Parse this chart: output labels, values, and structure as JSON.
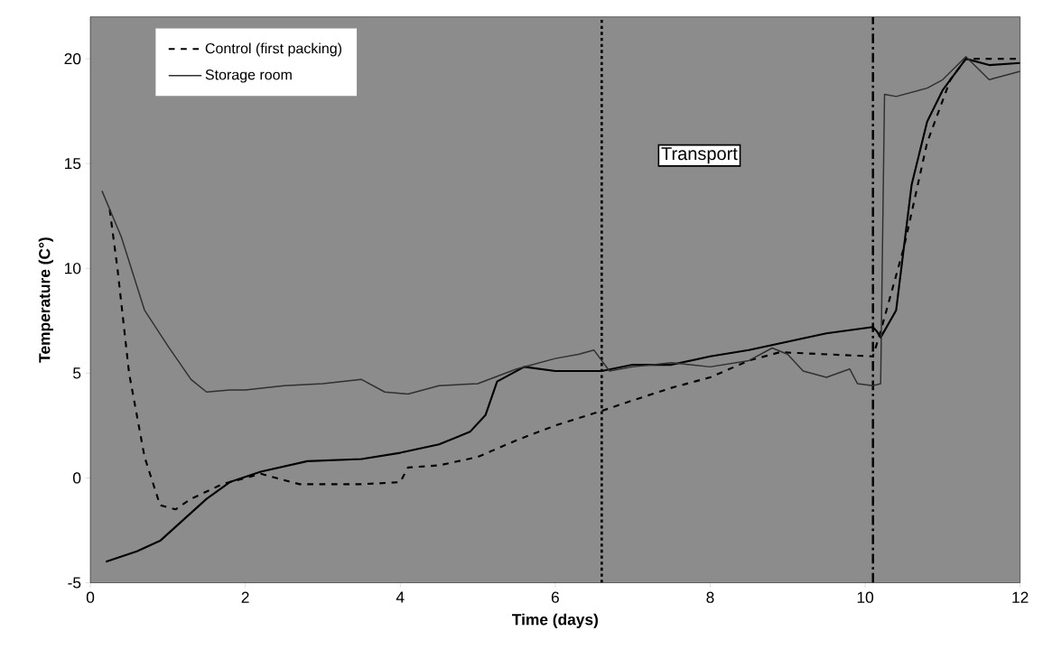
{
  "chart_data": {
    "type": "line",
    "xlabel": "Time (days)",
    "ylabel": "Temperature (C°)",
    "xlim": [
      0,
      12
    ],
    "ylim": [
      -5,
      22
    ],
    "xticks": [
      0,
      2,
      4,
      6,
      8,
      10,
      12
    ],
    "yticks": [
      -5,
      0,
      5,
      10,
      15,
      20
    ],
    "legend": "top left",
    "grid": false,
    "marker": "none",
    "series": [
      {
        "color": "#000000",
        "line_style": "solid",
        "x": [
          0.2,
          0.6,
          0.9,
          1.2,
          1.5,
          1.8,
          2.2,
          2.8,
          3.5,
          4,
          4.5,
          4.9,
          5.1,
          5.25,
          5.6,
          6,
          6.6,
          7,
          7.5,
          8,
          8.5,
          9,
          9.5,
          10.1,
          10.15,
          10.2,
          10.4,
          10.6,
          10.8,
          11,
          11.3,
          11.6,
          12
        ],
        "values": [
          -4,
          -3.5,
          -3,
          -2,
          -1,
          -0.2,
          0.3,
          0.8,
          0.9,
          1.2,
          1.6,
          2.2,
          3,
          4.6,
          5.3,
          5.1,
          5.1,
          5.4,
          5.4,
          5.8,
          6.1,
          6.5,
          6.9,
          7.2,
          7,
          6.7,
          8,
          14,
          17,
          18.5,
          20,
          19.7,
          19.8
        ]
      },
      {
        "name": "Control (first packing)",
        "color": "#000000",
        "line_style": "dashed",
        "x": [
          0.25,
          0.35,
          0.5,
          0.7,
          0.9,
          1.1,
          1.3,
          1.7,
          2.2,
          2.7,
          3.5,
          4,
          4.1,
          4.5,
          5,
          5.5,
          6,
          6.6,
          7,
          7.5,
          8,
          8.5,
          8.9,
          9.5,
          10.1,
          10.2,
          10.5,
          10.8,
          11.1,
          11.3,
          12
        ],
        "values": [
          12.8,
          10,
          5,
          1,
          -1.3,
          -1.5,
          -1,
          -0.3,
          0.2,
          -0.3,
          -0.3,
          -0.2,
          0.5,
          0.6,
          1,
          1.8,
          2.5,
          3.2,
          3.7,
          4.3,
          4.8,
          5.6,
          6,
          5.9,
          5.8,
          7,
          11,
          16,
          19,
          20,
          20
        ]
      },
      {
        "name": "Storage room",
        "color": "#303030",
        "line_style": "solid",
        "x": [
          0.15,
          0.4,
          0.7,
          1,
          1.3,
          1.5,
          1.8,
          2,
          2.5,
          3,
          3.5,
          3.8,
          4.1,
          4.5,
          5,
          5.5,
          6,
          6.3,
          6.5,
          6.7,
          7,
          7.5,
          8,
          8.5,
          8.8,
          9,
          9.2,
          9.5,
          9.8,
          9.9,
          10.1,
          10.2,
          10.25,
          10.4,
          10.8,
          11,
          11.3,
          11.6,
          12
        ],
        "values": [
          13.7,
          11.5,
          8,
          6.3,
          4.7,
          4.1,
          4.2,
          4.2,
          4.4,
          4.5,
          4.7,
          4.1,
          4,
          4.4,
          4.5,
          5.2,
          5.7,
          5.9,
          6.1,
          5.1,
          5.3,
          5.5,
          5.3,
          5.6,
          6.2,
          5.9,
          5.1,
          4.8,
          5.2,
          4.5,
          4.4,
          4.5,
          18.3,
          18.2,
          18.6,
          19,
          20.1,
          19,
          19.4
        ]
      }
    ],
    "ref_lines": [
      {
        "axis": "x",
        "value": 6.6,
        "line_style": "dotted",
        "color": "#000000"
      },
      {
        "axis": "x",
        "value": 10.1,
        "line_style": "dashdot",
        "color": "#000000"
      }
    ],
    "annotations": [
      "Transport"
    ]
  }
}
